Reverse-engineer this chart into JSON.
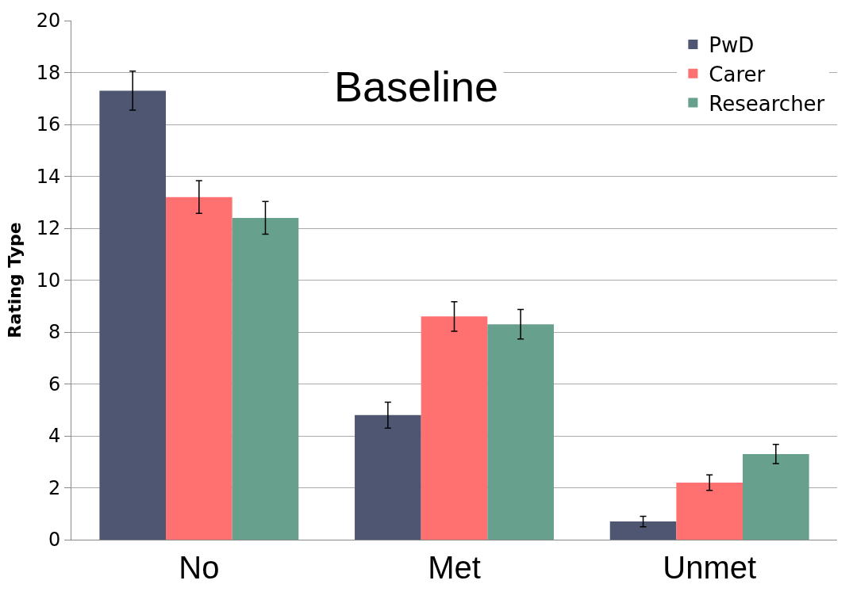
{
  "chart_data": {
    "type": "bar",
    "title": "Baseline",
    "ylabel": "Rating Type",
    "categories": [
      "No",
      "Met",
      "Unmet"
    ],
    "series": [
      {
        "name": "PwD",
        "color": "#4f5672",
        "values": [
          17.3,
          4.8,
          0.7
        ],
        "errors": [
          0.75,
          0.5,
          0.2
        ]
      },
      {
        "name": "Carer",
        "color": "#ff7070",
        "values": [
          13.2,
          8.6,
          2.2
        ],
        "errors": [
          0.63,
          0.57,
          0.3
        ]
      },
      {
        "name": "Researcher",
        "color": "#67a08c",
        "values": [
          12.4,
          8.3,
          3.3
        ],
        "errors": [
          0.63,
          0.57,
          0.37
        ]
      }
    ],
    "ylim": [
      0,
      20
    ],
    "yticks": [
      0,
      2,
      4,
      6,
      8,
      10,
      12,
      14,
      16,
      18,
      20
    ],
    "grid": "y",
    "legend": "top right"
  }
}
